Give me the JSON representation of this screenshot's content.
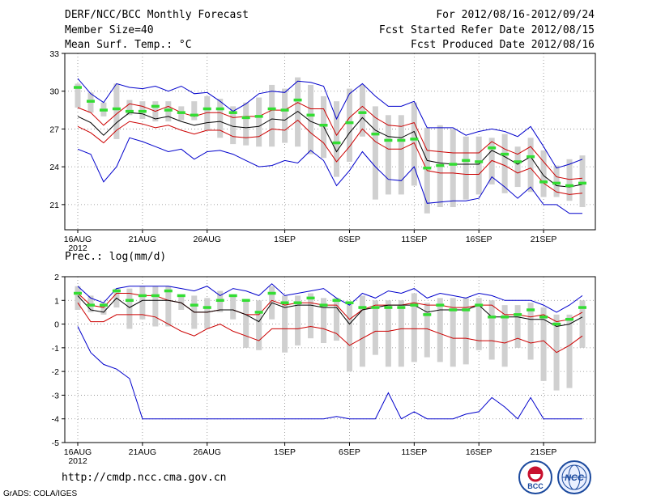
{
  "header": {
    "title": "DERF/NCC/BCC Monthly Forecast",
    "member": "Member Size=40",
    "variable": "Mean Surf. Temp.: °C",
    "range": "For 2012/08/16-2012/09/24",
    "started": "Fcst Started Refer Date 2012/08/15",
    "produced": "Fcst Produced Date 2012/08/16"
  },
  "footer": {
    "url": "http://cmdp.ncc.cma.gov.cn",
    "credit": "GrADS: COLA/IGES",
    "logo_left_text": "BCC",
    "logo_right_text": "NCC"
  },
  "colors": {
    "envelope": "#0000cc",
    "spread": "#cc0000",
    "mean": "#000000",
    "box": "#d0d0d0",
    "median": "#33dd33"
  },
  "chart_data": [
    {
      "type": "line",
      "title": "Mean Surf. Temp.: °C",
      "ylabel": "°C",
      "x": "days from 2012-08-16 (0-39)",
      "ylim": [
        19,
        33
      ],
      "yticks": [
        21,
        24,
        27,
        30,
        33
      ],
      "xtick_labels": [
        "16AUG",
        "21AUG",
        "26AUG",
        "1SEP",
        "6SEP",
        "11SEP",
        "16SEP",
        "21SEP"
      ],
      "xtick_sub": "2012",
      "xtick_days": [
        0,
        5,
        10,
        16,
        21,
        26,
        31,
        36
      ],
      "series": [
        {
          "name": "max",
          "values": [
            31.0,
            29.8,
            29.1,
            30.6,
            30.3,
            30.2,
            30.4,
            30.0,
            30.4,
            29.8,
            29.9,
            29.2,
            28.4,
            29.0,
            29.8,
            30.0,
            29.9,
            30.8,
            30.7,
            30.4,
            27.8,
            29.8,
            30.6,
            29.6,
            28.8,
            28.8,
            29.2,
            27.1,
            27.1,
            27.1,
            26.5,
            26.8,
            27.0,
            26.8,
            26.4,
            27.2,
            25.6,
            23.9,
            24.2,
            24.6
          ]
        },
        {
          "name": "mean_plus_sd",
          "values": [
            28.7,
            28.3,
            27.3,
            28.2,
            29.0,
            28.8,
            28.4,
            28.8,
            28.3,
            28.0,
            28.3,
            28.3,
            27.9,
            28.0,
            28.0,
            28.5,
            28.5,
            29.1,
            28.6,
            28.6,
            26.5,
            27.9,
            28.8,
            27.9,
            27.3,
            27.2,
            27.5,
            25.3,
            25.2,
            25.1,
            25.1,
            25.1,
            26.0,
            25.4,
            25.0,
            25.6,
            24.4,
            23.2,
            23.0,
            23.1
          ]
        },
        {
          "name": "mean",
          "values": [
            28.0,
            27.5,
            26.5,
            27.5,
            28.3,
            28.2,
            27.8,
            28.0,
            27.6,
            27.3,
            27.5,
            27.6,
            27.2,
            27.1,
            27.2,
            27.8,
            27.7,
            28.4,
            27.6,
            27.2,
            25.2,
            26.7,
            27.9,
            26.9,
            26.4,
            26.3,
            26.8,
            24.5,
            24.3,
            24.2,
            24.2,
            24.2,
            25.3,
            24.8,
            24.2,
            24.8,
            23.3,
            22.5,
            22.4,
            22.6
          ]
        },
        {
          "name": "mean_minus_sd",
          "values": [
            27.2,
            26.7,
            25.9,
            26.9,
            27.6,
            27.4,
            27.1,
            27.3,
            26.9,
            26.6,
            26.9,
            26.9,
            26.4,
            26.3,
            26.4,
            27.0,
            26.9,
            27.7,
            26.7,
            25.9,
            24.4,
            25.6,
            27.0,
            26.0,
            25.4,
            25.4,
            25.9,
            23.7,
            23.5,
            23.5,
            23.4,
            23.4,
            24.5,
            24.1,
            23.5,
            23.9,
            22.7,
            22.0,
            21.8,
            21.9
          ]
        },
        {
          "name": "min",
          "values": [
            25.4,
            25.0,
            22.8,
            24.0,
            26.3,
            26.0,
            25.6,
            25.2,
            25.4,
            24.6,
            25.2,
            25.3,
            25.0,
            24.5,
            24.0,
            24.1,
            24.5,
            24.3,
            25.3,
            24.5,
            22.5,
            23.7,
            25.2,
            24.0,
            23.0,
            22.9,
            24.0,
            21.1,
            21.2,
            21.3,
            21.3,
            21.5,
            23.2,
            22.4,
            21.5,
            22.4,
            21.0,
            21.0,
            20.3,
            20.3
          ]
        },
        {
          "name": "median",
          "values": [
            30.3,
            29.2,
            28.5,
            28.6,
            28.4,
            28.4,
            28.8,
            28.5,
            28.3,
            28.1,
            28.6,
            28.6,
            28.3,
            27.9,
            28.0,
            28.6,
            28.5,
            29.3,
            28.1,
            27.3,
            25.9,
            27.5,
            28.3,
            26.6,
            26.1,
            26.1,
            26.2,
            23.9,
            24.1,
            24.2,
            24.5,
            24.4,
            25.5,
            25.0,
            24.4,
            24.8,
            22.8,
            22.7,
            22.5,
            22.7
          ]
        }
      ],
      "boxes_lo": [
        28.7,
        28.3,
        28.0,
        26.2,
        28.1,
        27.8,
        27.6,
        27.6,
        27.7,
        27.7,
        26.9,
        26.3,
        25.8,
        25.7,
        25.6,
        25.6,
        25.9,
        25.6,
        25.0,
        24.7,
        23.2,
        24.4,
        26.4,
        21.4,
        21.8,
        21.8,
        22.5,
        20.3,
        20.8,
        20.8,
        21.4,
        21.8,
        22.6,
        21.9,
        22.4,
        22.0,
        21.6,
        21.6,
        21.3,
        20.8
      ],
      "boxes_hi": [
        30.6,
        29.9,
        29.1,
        30.6,
        29.3,
        29.2,
        29.2,
        29.2,
        28.8,
        29.2,
        29.6,
        29.4,
        28.8,
        29.1,
        29.5,
        30.5,
        30.2,
        31.1,
        30.5,
        29.6,
        29.2,
        30.2,
        30.5,
        28.8,
        28.1,
        28.1,
        29.1,
        27.1,
        27.3,
        27.0,
        26.4,
        26.4,
        26.3,
        26.6,
        25.6,
        26.3,
        25.3,
        24.1,
        24.6,
        24.9
      ]
    },
    {
      "type": "line",
      "title": "Prec.: log(mm/d)",
      "ylabel": "log(mm/d)",
      "x": "days from 2012-08-16 (0-39)",
      "ylim": [
        -5,
        2
      ],
      "yticks": [
        -5,
        -4,
        -3,
        -2,
        -1,
        0,
        1,
        2
      ],
      "xtick_labels": [
        "16AUG",
        "21AUG",
        "26AUG",
        "1SEP",
        "6SEP",
        "11SEP",
        "16SEP",
        "21SEP"
      ],
      "xtick_sub": "2012",
      "xtick_days": [
        0,
        5,
        10,
        16,
        21,
        26,
        31,
        36
      ],
      "series": [
        {
          "name": "max",
          "values": [
            1.6,
            1.1,
            0.9,
            1.5,
            1.6,
            1.6,
            1.6,
            1.6,
            1.5,
            1.4,
            1.6,
            1.2,
            1.5,
            1.4,
            1.2,
            1.7,
            1.2,
            1.3,
            1.4,
            1.5,
            1.1,
            0.8,
            1.3,
            1.1,
            1.4,
            1.3,
            1.5,
            1.1,
            1.3,
            1.2,
            1.1,
            1.3,
            1.2,
            1.0,
            1.0,
            1.0,
            0.8,
            0.5,
            0.8,
            1.2
          ]
        },
        {
          "name": "mean_plus_sd",
          "values": [
            1.3,
            0.8,
            0.7,
            1.3,
            1.3,
            1.2,
            1.2,
            1.0,
            0.9,
            0.5,
            0.5,
            0.6,
            0.6,
            0.4,
            0.4,
            1.0,
            0.8,
            0.9,
            0.9,
            0.8,
            0.8,
            0.2,
            0.6,
            0.8,
            0.8,
            0.8,
            0.9,
            0.8,
            0.8,
            0.7,
            0.7,
            0.8,
            0.8,
            0.4,
            0.4,
            0.3,
            0.4,
            0.1,
            0.2,
            0.5
          ]
        },
        {
          "name": "mean",
          "values": [
            1.2,
            0.6,
            0.5,
            1.1,
            0.7,
            1.0,
            1.0,
            1.0,
            0.9,
            0.5,
            0.5,
            0.6,
            0.6,
            0.4,
            0.1,
            0.9,
            0.7,
            0.8,
            0.8,
            0.7,
            0.7,
            0.0,
            0.6,
            0.7,
            0.8,
            0.8,
            0.8,
            0.5,
            0.6,
            0.6,
            0.6,
            0.8,
            0.3,
            0.3,
            0.3,
            0.2,
            0.2,
            -0.1,
            0.0,
            0.3
          ]
        },
        {
          "name": "mean_minus_sd",
          "values": [
            0.9,
            0.1,
            0.1,
            0.4,
            0.4,
            0.4,
            0.3,
            0.0,
            -0.3,
            -0.5,
            -0.2,
            0.0,
            -0.3,
            -0.5,
            -0.7,
            -0.2,
            -0.2,
            -0.2,
            -0.1,
            -0.2,
            -0.4,
            -0.9,
            -0.6,
            -0.3,
            -0.3,
            -0.2,
            -0.2,
            -0.2,
            -0.4,
            -0.6,
            -0.6,
            -0.7,
            -0.7,
            -0.8,
            -0.6,
            -0.8,
            -0.7,
            -1.2,
            -0.9,
            -0.5
          ]
        },
        {
          "name": "min",
          "values": [
            -0.1,
            -1.2,
            -1.7,
            -1.9,
            -2.3,
            -4.0,
            -4.0,
            -4.0,
            -4.0,
            -4.0,
            -4.0,
            -4.0,
            -4.0,
            -4.0,
            -4.0,
            -4.0,
            -4.0,
            -4.0,
            -4.0,
            -4.0,
            -3.9,
            -4.0,
            -4.0,
            -4.0,
            -2.9,
            -4.0,
            -3.7,
            -4.0,
            -4.0,
            -4.0,
            -3.8,
            -3.7,
            -3.1,
            -3.5,
            -4.0,
            -3.1,
            -4.0,
            -4.0,
            -4.0,
            -4.0
          ]
        },
        {
          "name": "median",
          "values": [
            1.3,
            0.8,
            0.8,
            1.4,
            1.0,
            1.2,
            1.2,
            1.4,
            1.2,
            0.8,
            0.7,
            1.0,
            1.2,
            1.0,
            0.5,
            1.3,
            0.9,
            0.9,
            1.1,
            0.8,
            1.0,
            0.9,
            0.7,
            0.7,
            0.7,
            0.7,
            0.8,
            0.4,
            0.8,
            0.6,
            0.6,
            0.8,
            0.3,
            0.3,
            0.4,
            0.6,
            0.3,
            0.0,
            0.2,
            0.7
          ]
        }
      ],
      "boxes_lo": [
        0.6,
        0.5,
        0.4,
        0.7,
        -0.2,
        0.2,
        -0.1,
        -0.1,
        0.6,
        -0.2,
        -0.2,
        0.5,
        0.2,
        -1.0,
        -1.1,
        0.2,
        -1.2,
        -0.9,
        -0.6,
        -0.8,
        -0.7,
        -2.0,
        -1.8,
        -1.3,
        -1.8,
        -1.8,
        -1.6,
        -1.4,
        -1.6,
        -1.8,
        -1.7,
        -1.1,
        -1.5,
        -1.8,
        -1.0,
        -1.5,
        -2.4,
        -2.8,
        -2.7,
        -1.0
      ],
      "boxes_hi": [
        1.6,
        1.2,
        0.9,
        1.5,
        1.5,
        1.6,
        1.6,
        1.6,
        1.2,
        1.2,
        1.1,
        1.4,
        1.2,
        1.0,
        1.0,
        1.6,
        1.2,
        1.2,
        1.3,
        1.1,
        1.1,
        0.9,
        1.2,
        1.0,
        1.0,
        1.0,
        1.3,
        0.9,
        1.1,
        1.1,
        1.1,
        1.1,
        1.0,
        0.8,
        0.8,
        0.9,
        0.7,
        0.4,
        0.4,
        1.0
      ]
    }
  ]
}
